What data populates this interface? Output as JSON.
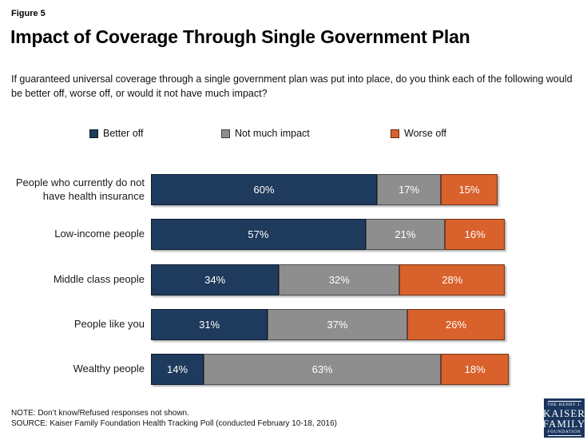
{
  "figure_label": "Figure 5",
  "title": "Impact of Coverage Through Single Government Plan",
  "subtitle": "If guaranteed universal coverage through a single government plan was put into place, do you think each of the following would be better off, worse off, or would it not have much impact?",
  "chart_data": {
    "type": "bar",
    "orientation": "horizontal",
    "stacked": true,
    "grid": false,
    "legend_position": "top",
    "value_suffix": "%",
    "xlim": [
      0,
      100
    ],
    "categories": [
      "People who currently do not have health insurance",
      "Low-income people",
      "Middle class people",
      "People like you",
      "Wealthy people"
    ],
    "series": [
      {
        "name": "Better off",
        "color": "#1e3a5c",
        "values": [
          60,
          57,
          34,
          31,
          14
        ]
      },
      {
        "name": "Not much impact",
        "color": "#8e8e8e",
        "values": [
          17,
          21,
          32,
          37,
          63
        ]
      },
      {
        "name": "Worse off",
        "color": "#d9612b",
        "values": [
          15,
          16,
          28,
          26,
          18
        ]
      }
    ]
  },
  "colors": {
    "better_off": "#1e3a5c",
    "not_much_impact": "#8e8e8e",
    "worse_off": "#d9612b",
    "logo_background": "#1a355e"
  },
  "notes": {
    "note": "NOTE: Don’t know/Refused responses not shown.",
    "source": "SOURCE: Kaiser Family Foundation Health Tracking Poll (conducted February 10-18, 2016)"
  },
  "logo": {
    "line1": "THE HENRY J.",
    "line2": "KAISER",
    "line3": "FAMILY",
    "line4": "FOUNDATION"
  }
}
